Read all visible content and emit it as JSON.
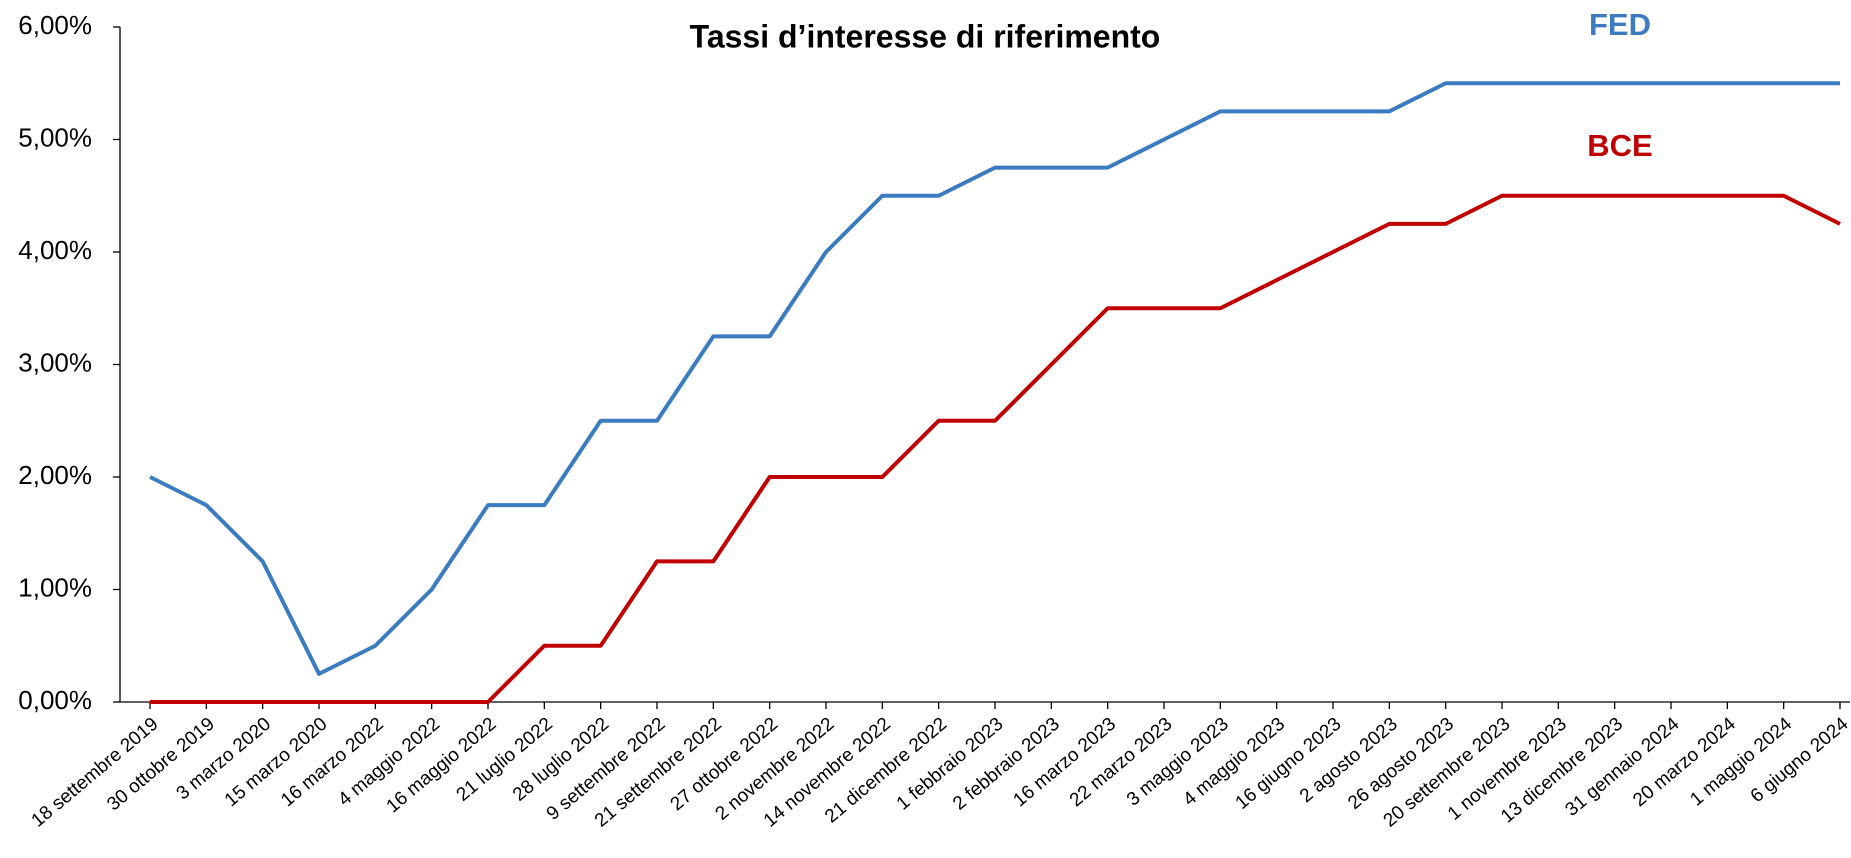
{
  "chart_data": {
    "type": "line",
    "title": "Tassi d’interesse di riferimento",
    "categories": [
      "18 settembre 2019",
      "30 ottobre 2019",
      "3 marzo 2020",
      "15 marzo 2020",
      "16 marzo 2022",
      "4 maggio 2022",
      "16 maggio 2022",
      "21 luglio 2022",
      "28 luglio 2022",
      "9 settembre 2022",
      "21 settembre 2022",
      "27 ottobre 2022",
      "2 novembre 2022",
      "14 novembre 2022",
      "21 dicembre 2022",
      "1 febbraio 2023",
      "2 febbraio 2023",
      "16 marzo 2023",
      "22 marzo 2023",
      "3 maggio 2023",
      "4 maggio 2023",
      "16 giugno 2023",
      "2 agosto 2023",
      "26 agosto 2023",
      "20 settembre 2023",
      "1 novembre 2023",
      "13 dicembre 2023",
      "31 gennaio 2024",
      "20 marzo 2024",
      "1 maggio 2024",
      "6 giugno 2024"
    ],
    "series": [
      {
        "name": "FED",
        "color": "#3b7bbf",
        "values": [
          2.0,
          1.75,
          1.25,
          0.25,
          0.5,
          1.0,
          1.75,
          1.75,
          2.5,
          2.5,
          3.25,
          3.25,
          4.0,
          4.5,
          4.5,
          4.75,
          4.75,
          4.75,
          5.0,
          5.25,
          5.25,
          5.25,
          5.25,
          5.5,
          5.5,
          5.5,
          5.5,
          5.5,
          5.5,
          5.5,
          5.5
        ]
      },
      {
        "name": "BCE",
        "color": "#c00000",
        "values": [
          0,
          0,
          0,
          0,
          0,
          0,
          0,
          0.5,
          0.5,
          1.25,
          1.25,
          2.0,
          2.0,
          2.0,
          2.5,
          2.5,
          3.0,
          3.5,
          3.5,
          3.5,
          3.75,
          4.0,
          4.25,
          4.25,
          4.5,
          4.5,
          4.5,
          4.5,
          4.5,
          4.5,
          4.25
        ]
      }
    ],
    "ylim": [
      0,
      6
    ],
    "yticks": [
      {
        "value": 0,
        "label": "0,00%"
      },
      {
        "value": 1,
        "label": "1,00%"
      },
      {
        "value": 2,
        "label": "2,00%"
      },
      {
        "value": 3,
        "label": "3,00%"
      },
      {
        "value": 4,
        "label": "4,00%"
      },
      {
        "value": 5,
        "label": "5,00%"
      },
      {
        "value": 6,
        "label": "6,00%"
      }
    ]
  }
}
